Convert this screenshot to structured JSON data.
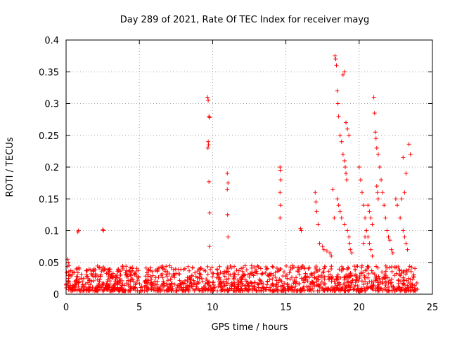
{
  "chart_data": {
    "type": "scatter",
    "title": "Day 289 of 2021, Rate Of TEC Index for receiver mayg",
    "xlabel": "GPS time / hours",
    "ylabel": "ROTI / TECUs",
    "xlim": [
      0,
      25
    ],
    "ylim": [
      0,
      0.4
    ],
    "xticks": [
      0,
      5,
      10,
      15,
      20,
      25
    ],
    "yticks": [
      0,
      0.05,
      0.1,
      0.15,
      0.2,
      0.25,
      0.3,
      0.35,
      0.4
    ],
    "xtick_labels": [
      "0",
      "5",
      "10",
      "15",
      "20",
      "25"
    ],
    "ytick_labels": [
      "0",
      "0.05",
      "0.1",
      "0.15",
      "0.2",
      "0.25",
      "0.3",
      "0.35",
      "0.4"
    ],
    "grid": true,
    "marker": "+",
    "color": "#ff0000",
    "series": [
      {
        "x": [
          0.1,
          0.15,
          0.2,
          0.8,
          0.85,
          2.5,
          2.55,
          9.65,
          9.7,
          9.75,
          9.8,
          9.7,
          9.72,
          9.68,
          9.75,
          9.8,
          9.78,
          11.0,
          11.05,
          11.0,
          11.02,
          11.05,
          14.6,
          14.62,
          14.65,
          14.6,
          14.63,
          14.6,
          16.0,
          16.05,
          17.0,
          17.05,
          17.1,
          17.2,
          17.3,
          18.2,
          18.3,
          18.35,
          18.4,
          18.45,
          18.5,
          18.55,
          18.6,
          18.7,
          18.8,
          18.9,
          19.0,
          19.1,
          19.2,
          19.3,
          18.9,
          19.0,
          19.05,
          19.1,
          19.15,
          18.5,
          18.6,
          18.7,
          18.8,
          19.0,
          19.2,
          19.3,
          19.35,
          19.4,
          19.5,
          20.0,
          20.1,
          20.2,
          20.3,
          20.4,
          20.5,
          20.6,
          20.7,
          20.8,
          20.9,
          21.0,
          21.05,
          21.1,
          21.15,
          21.2,
          21.3,
          21.4,
          21.5,
          21.6,
          21.7,
          21.8,
          21.9,
          22.0,
          22.1,
          22.2,
          22.3,
          22.5,
          22.6,
          22.8,
          23.0,
          23.1,
          23.2,
          23.3,
          23.4,
          23.5,
          23.0,
          23.2,
          23.1,
          22.9,
          21.2,
          21.25,
          21.3,
          20.6,
          20.7,
          20.8,
          20.9,
          20.5,
          20.4,
          20.3,
          17.5,
          17.6,
          17.8,
          18.0,
          18.1
        ],
        "y": [
          0.055,
          0.05,
          0.045,
          0.098,
          0.1,
          0.102,
          0.1,
          0.31,
          0.305,
          0.28,
          0.278,
          0.24,
          0.235,
          0.23,
          0.177,
          0.128,
          0.075,
          0.19,
          0.175,
          0.165,
          0.125,
          0.09,
          0.2,
          0.195,
          0.18,
          0.16,
          0.14,
          0.12,
          0.103,
          0.1,
          0.16,
          0.145,
          0.13,
          0.11,
          0.08,
          0.165,
          0.12,
          0.375,
          0.37,
          0.36,
          0.32,
          0.3,
          0.28,
          0.25,
          0.24,
          0.345,
          0.35,
          0.27,
          0.26,
          0.25,
          0.22,
          0.21,
          0.2,
          0.19,
          0.18,
          0.15,
          0.14,
          0.13,
          0.12,
          0.11,
          0.1,
          0.09,
          0.08,
          0.07,
          0.065,
          0.2,
          0.18,
          0.16,
          0.14,
          0.12,
          0.1,
          0.09,
          0.08,
          0.07,
          0.06,
          0.31,
          0.285,
          0.255,
          0.245,
          0.23,
          0.22,
          0.2,
          0.18,
          0.16,
          0.14,
          0.12,
          0.1,
          0.09,
          0.085,
          0.07,
          0.065,
          0.15,
          0.14,
          0.12,
          0.1,
          0.09,
          0.08,
          0.07,
          0.236,
          0.22,
          0.215,
          0.19,
          0.16,
          0.15,
          0.17,
          0.16,
          0.15,
          0.14,
          0.13,
          0.12,
          0.11,
          0.1,
          0.09,
          0.08,
          0.075,
          0.07,
          0.068,
          0.065,
          0.06
        ]
      }
    ],
    "background_band": {
      "description": "Dense cluster of points between 0 and about 0.04 across 0 to 24 hours",
      "x_range": [
        0,
        24
      ],
      "y_range": [
        0.005,
        0.045
      ]
    }
  }
}
